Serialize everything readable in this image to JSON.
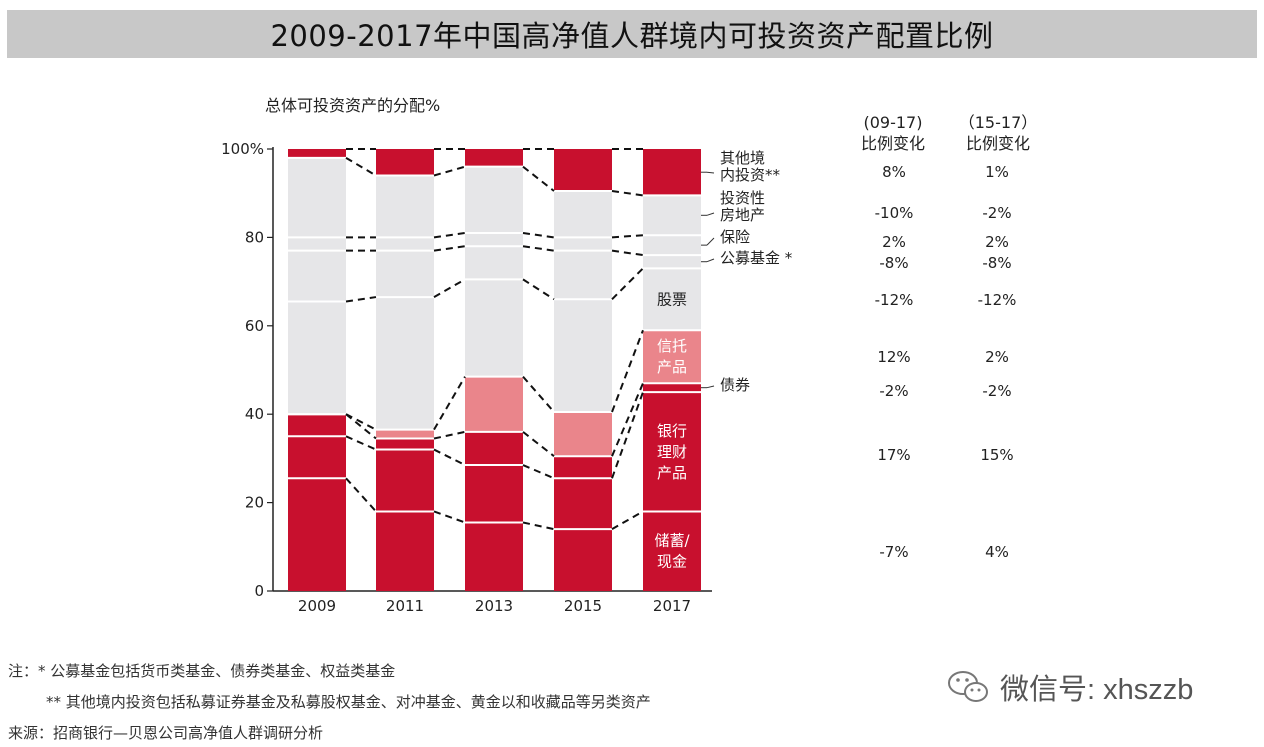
{
  "title": "2009-2017年中国高净值人群境内可投资资产配置比例",
  "subtitle": "总体可投资资产的分配%",
  "columns": {
    "col1": {
      "line1": "(09-17)",
      "line2": "比例变化"
    },
    "col2": {
      "line1": "（15-17）",
      "line2": "比例变化"
    }
  },
  "chart_data": {
    "type": "bar",
    "stacked": true,
    "categories": [
      "2009",
      "2011",
      "2013",
      "2015",
      "2017"
    ],
    "ylim": [
      0,
      100
    ],
    "yticks": [
      "0",
      "20",
      "40",
      "60",
      "80",
      "100%"
    ],
    "series": [
      {
        "key": "cash",
        "name": "储蓄/现金",
        "color": "#c8102e",
        "values": [
          25.5,
          18,
          15.5,
          14,
          18
        ]
      },
      {
        "key": "wealth",
        "name": "银行理财产品",
        "color": "#c8102e",
        "values": [
          9.5,
          14,
          13,
          11.5,
          27
        ]
      },
      {
        "key": "bond",
        "name": "债券",
        "color": "#c8102e",
        "values": [
          5,
          2.5,
          7.5,
          5,
          2
        ]
      },
      {
        "key": "trust",
        "name": "信托产品",
        "color": "#ea858b",
        "values": [
          0,
          2,
          12.5,
          10,
          12
        ]
      },
      {
        "key": "stock",
        "name": "股票",
        "color": "#e6e6e8",
        "values": [
          25.5,
          30,
          22,
          25.5,
          14
        ]
      },
      {
        "key": "fund",
        "name": "公募基金 *",
        "color": "#e6e6e8",
        "values": [
          11.5,
          10.5,
          7.5,
          11,
          3
        ]
      },
      {
        "key": "insurance",
        "name": "保险",
        "color": "#e6e6e8",
        "values": [
          3,
          3,
          3,
          3,
          4.5
        ]
      },
      {
        "key": "realestate",
        "name": "投资性房地产",
        "color": "#e6e6e8",
        "values": [
          18,
          14,
          15,
          10.5,
          9
        ]
      },
      {
        "key": "other",
        "name": "其他境内投资**",
        "color": "#c8102e",
        "values": [
          2,
          6,
          4,
          9.5,
          10.5
        ]
      }
    ],
    "legend": [
      {
        "key": "other",
        "lines": [
          "其他境",
          "内投资**"
        ],
        "chg_0917": "8%",
        "chg_1517": "1%"
      },
      {
        "key": "realestate",
        "lines": [
          "投资性",
          "房地产"
        ],
        "chg_0917": "-10%",
        "chg_1517": "-2%"
      },
      {
        "key": "insurance",
        "lines": [
          "保险"
        ],
        "chg_0917": "2%",
        "chg_1517": "2%"
      },
      {
        "key": "fund",
        "lines": [
          "公募基金 *"
        ],
        "chg_0917": "-8%",
        "chg_1517": "-8%"
      },
      {
        "key": "stock",
        "lines": [
          "股票"
        ],
        "chg_0917": "-12%",
        "chg_1517": "-12%"
      },
      {
        "key": "trust",
        "lines": [
          "信托",
          "产品"
        ],
        "chg_0917": "12%",
        "chg_1517": "2%"
      },
      {
        "key": "bond",
        "lines": [
          "债券"
        ],
        "chg_0917": "-2%",
        "chg_1517": "-2%"
      },
      {
        "key": "wealth",
        "lines": [
          "银行",
          "理财",
          "产品"
        ],
        "chg_0917": "17%",
        "chg_1517": "15%"
      },
      {
        "key": "cash",
        "lines": [
          "储蓄/",
          "现金"
        ],
        "chg_0917": "-7%",
        "chg_1517": "4%"
      }
    ]
  },
  "notes": {
    "note1": "注：* 公募基金包括货币类基金、债券类基金、权益类基金",
    "note2": "** 其他境内投资包括私募证券基金及私募股权基金、对冲基金、黄金以和收藏品等另类资产",
    "source": "来源：招商银行—贝恩公司高净值人群调研分析"
  },
  "watermark": {
    "text": "微信号: xhszzb",
    "icon": "wechat-icon"
  }
}
